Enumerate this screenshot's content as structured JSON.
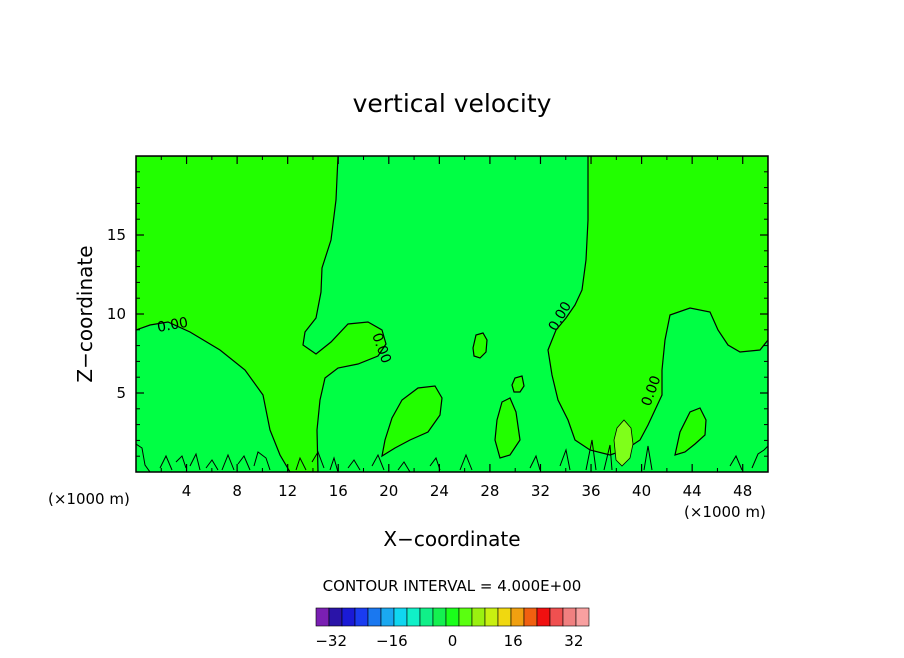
{
  "chart_data": {
    "type": "heatmap",
    "title": "vertical velocity",
    "xlabel": "X−coordinate",
    "ylabel": "Z−coordinate",
    "x_unit_left": "(×1000 m)",
    "x_unit_right": "(×1000 m)",
    "xlim": [
      0,
      50
    ],
    "ylim": [
      0,
      20
    ],
    "x_ticks": [
      4,
      8,
      12,
      16,
      20,
      24,
      28,
      32,
      36,
      40,
      44,
      48
    ],
    "y_ticks": [
      5,
      10,
      15
    ],
    "contour_label": "0.00",
    "contour_interval_text": "CONTOUR INTERVAL = 4.000E+00",
    "colorbar": {
      "min": -36,
      "max": 36,
      "tick_values": [
        -32,
        -16,
        0,
        16,
        32
      ],
      "tick_labels": [
        "−32",
        "−16",
        "0",
        "16",
        "32"
      ],
      "colors": [
        "#7a1fb3",
        "#2a14a8",
        "#1a1ad6",
        "#1a3cf0",
        "#1a78f0",
        "#1aa8f0",
        "#10d6f0",
        "#10f0c8",
        "#10f088",
        "#14f050",
        "#1aff1a",
        "#5aff10",
        "#9af010",
        "#c8f010",
        "#f0d810",
        "#f0a010",
        "#f06010",
        "#f01010",
        "#f05050",
        "#f08080",
        "#f8a0a0"
      ]
    },
    "fill_colors": {
      "positive": "#22ff00",
      "negative": "#00ff44",
      "strong_positive": "#7fff1a"
    },
    "grid": false,
    "legend": "bottom"
  }
}
